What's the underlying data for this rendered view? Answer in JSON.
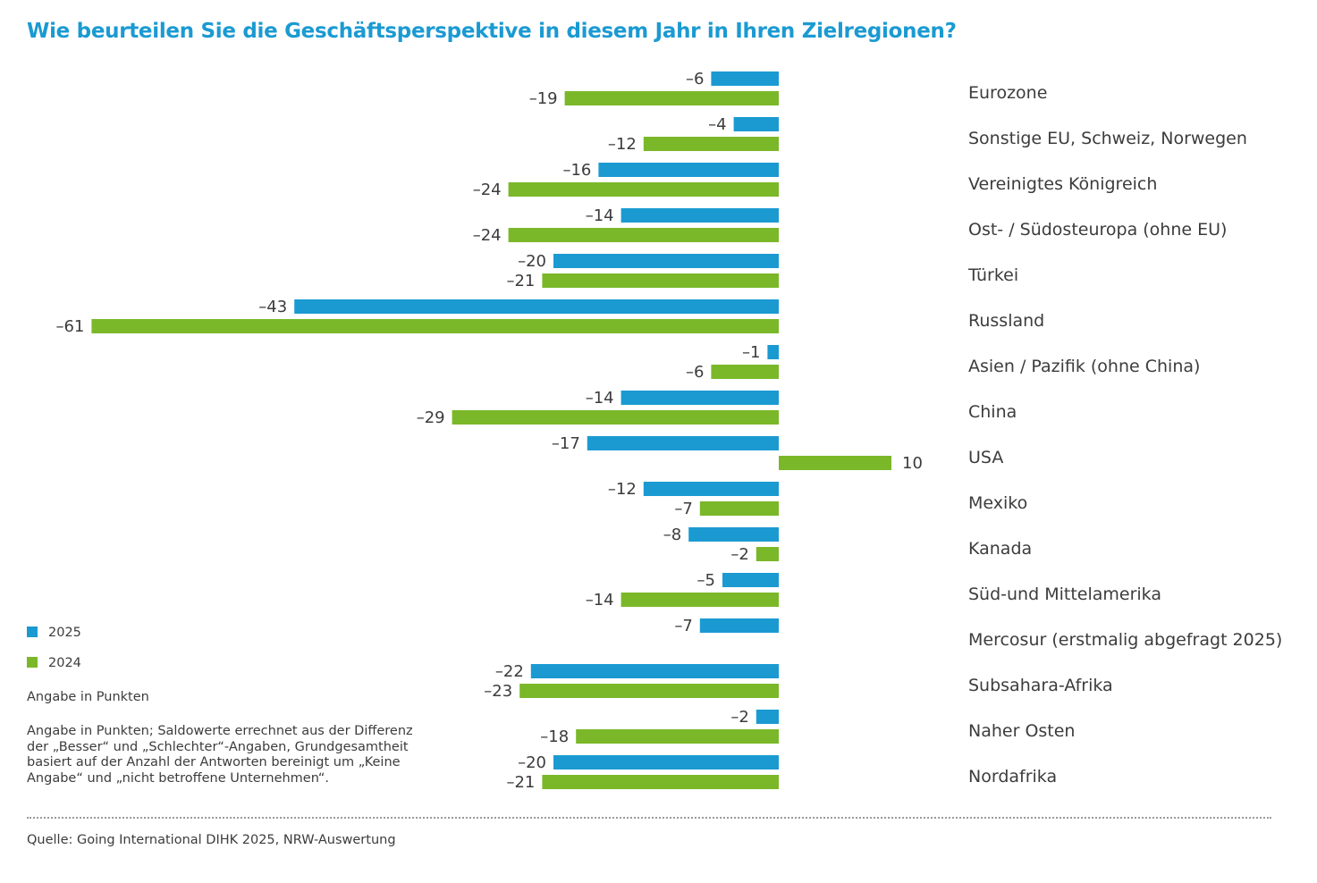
{
  "chart_data": {
    "type": "bar",
    "orientation": "horizontal",
    "title": "Wie beurteilen Sie die Geschäftsperspektive in diesem Jahr in Ihren Zielregionen?",
    "categories": [
      "Eurozone",
      "Sonstige EU, Schweiz, Norwegen",
      "Vereinigtes Königreich",
      "Ost- / Südosteuropa (ohne EU)",
      "Türkei",
      "Russland",
      "Asien / Pazifik (ohne China)",
      "China",
      "USA",
      "Mexiko",
      "Kanada",
      "Süd-und Mittelamerika",
      "Mercosur (erstmalig abgefragt 2025)",
      "Subsahara-Afrika",
      "Naher Osten",
      "Nordafrika"
    ],
    "series": [
      {
        "name": "2025",
        "color": "#1b9ad2",
        "values": [
          -6,
          -4,
          -16,
          -14,
          -20,
          -43,
          -1,
          -14,
          -17,
          -12,
          -8,
          -5,
          -7,
          -22,
          -2,
          -20
        ]
      },
      {
        "name": "2024",
        "color": "#7ab829",
        "values": [
          -19,
          -12,
          -24,
          -24,
          -21,
          -61,
          -6,
          -29,
          10,
          -7,
          -2,
          -14,
          null,
          -23,
          -18,
          -21
        ]
      }
    ],
    "xlim": [
      -61,
      10
    ],
    "grid": false,
    "legend": "bottom-left"
  },
  "legend": {
    "items": [
      {
        "label": "2025",
        "color": "#1b9ad2"
      },
      {
        "label": "2024",
        "color": "#7ab829"
      }
    ]
  },
  "unit_label": "Angabe in Punkten",
  "note": "Angabe in Punkten; Saldowerte errechnet aus der Differenz der „Besser“ und „Schlechter“-Angaben, Grundgesamtheit basiert auf der Anzahl der Antworten bereinigt um „Keine Angabe“ und „nicht betroffene Unternehmen“.",
  "source": "Quelle: Going International DIHK 2025, NRW-Auswertung"
}
